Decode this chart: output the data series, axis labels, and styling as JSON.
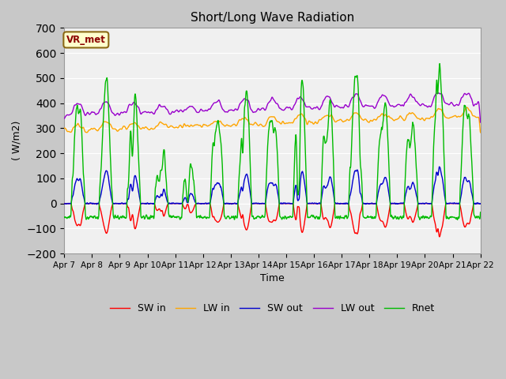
{
  "title": "Short/Long Wave Radiation",
  "xlabel": "Time",
  "ylabel": "( W/m2)",
  "ylim": [
    -200,
    700
  ],
  "yticks": [
    -200,
    -100,
    0,
    100,
    200,
    300,
    400,
    500,
    600,
    700
  ],
  "x_tick_labels": [
    "Apr 7",
    "Apr 8",
    "Apr 9",
    "Apr 10",
    "Apr 11",
    "Apr 12",
    "Apr 13",
    "Apr 14",
    "Apr 15",
    "Apr 16",
    "Apr 17",
    "Apr 18",
    "Apr 19",
    "Apr 20",
    "Apr 21",
    "Apr 22"
  ],
  "legend_labels": [
    "SW in",
    "LW in",
    "SW out",
    "LW out",
    "Rnet"
  ],
  "colors": {
    "SW_in": "#ff0000",
    "LW_in": "#ffa500",
    "SW_out": "#0000cd",
    "LW_out": "#9900cc",
    "Rnet": "#00bb00"
  },
  "annotation_text": "VR_met",
  "fig_bg_color": "#c8c8c8",
  "plot_bg_color": "#f0f0f0",
  "grid_color": "#ffffff",
  "linewidth": 1.0
}
